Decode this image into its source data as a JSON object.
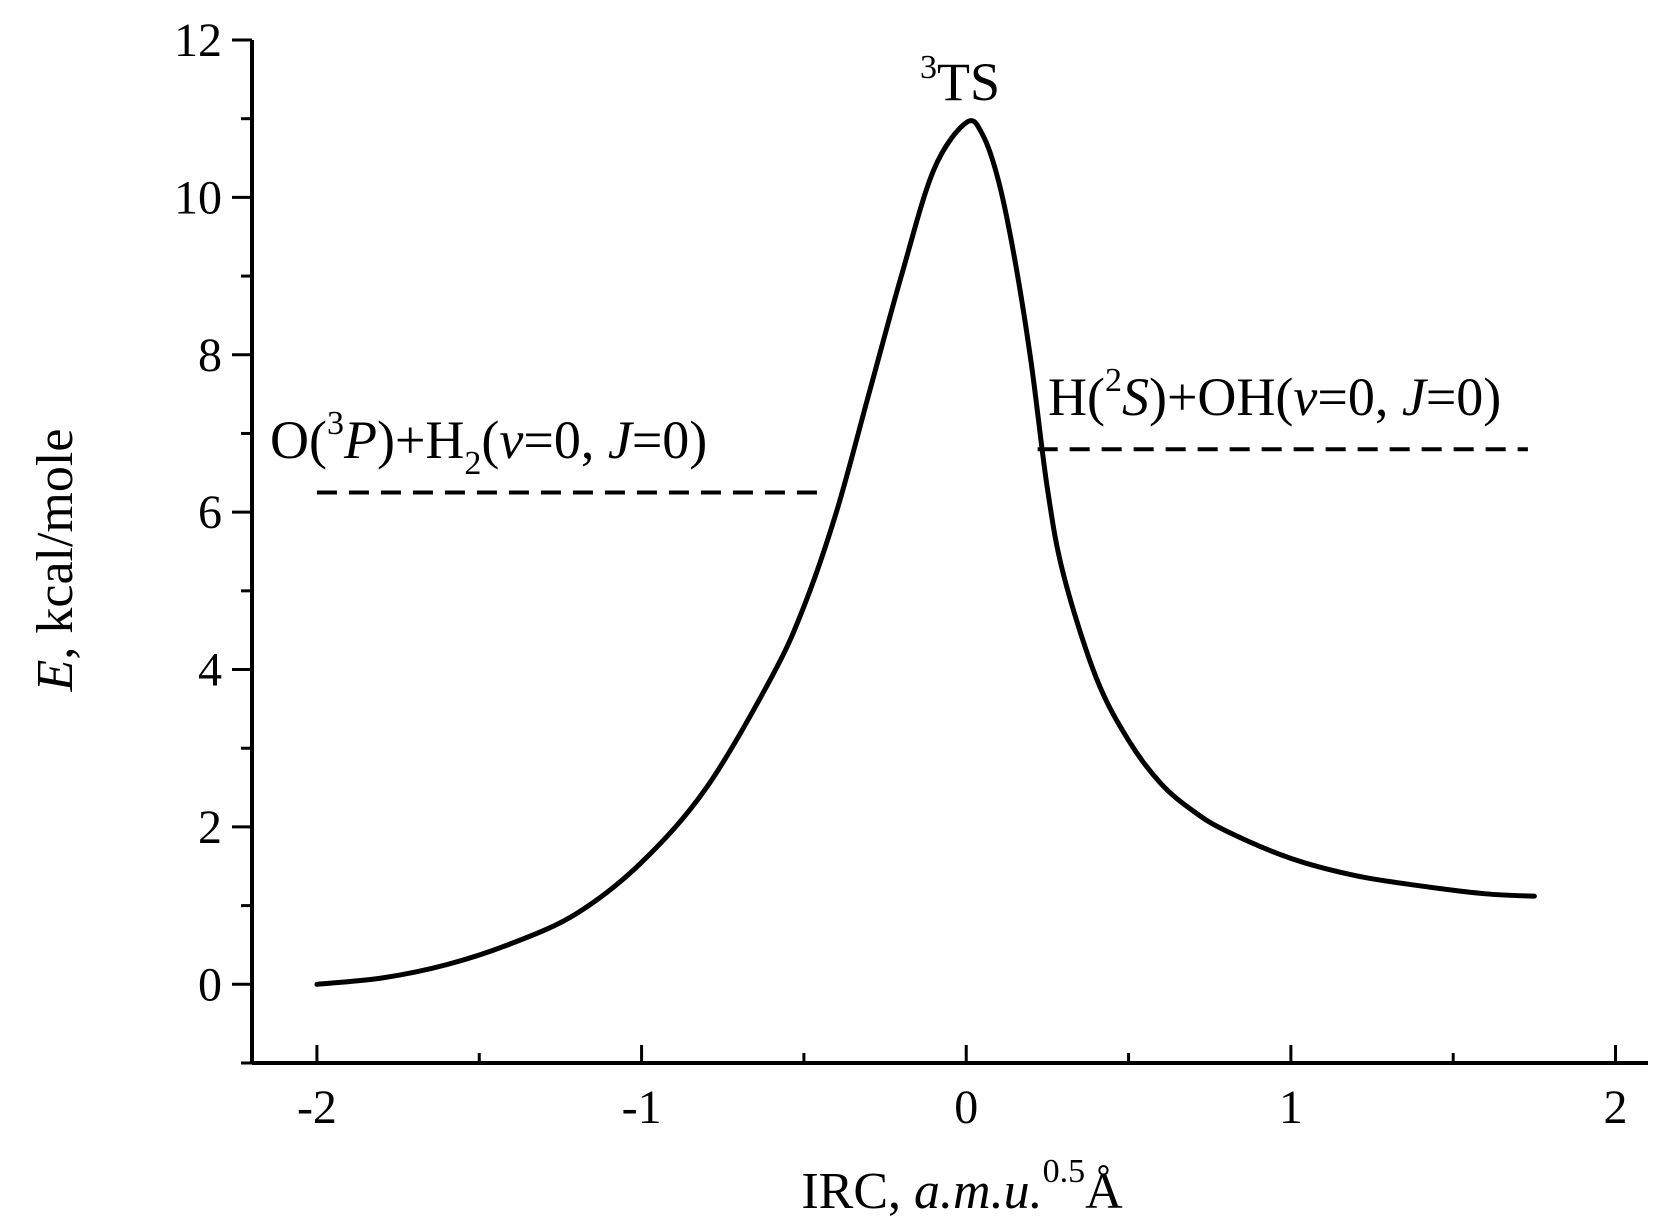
{
  "chart_data": {
    "type": "line",
    "x_axis": {
      "range": [
        -2.2,
        2.1
      ],
      "ticks": [
        -2,
        -1,
        0,
        1,
        2
      ],
      "tick_labels": [
        "-2",
        "-1",
        "0",
        "1",
        "2"
      ],
      "minor_ticks": [
        -1.5,
        -0.5,
        0.5,
        1.5
      ],
      "label_text": "IRC, ",
      "label_italic": "a.m.u.",
      "label_sup": "0.5",
      "label_unit": "Å"
    },
    "y_axis": {
      "range": [
        -1,
        12
      ],
      "ticks": [
        0,
        2,
        4,
        6,
        8,
        10,
        12
      ],
      "tick_labels": [
        "0",
        "2",
        "4",
        "6",
        "8",
        "10",
        "12"
      ],
      "minor_ticks": [
        -1,
        1,
        3,
        5,
        7,
        9,
        11
      ],
      "label_italic": "E",
      "label_text": ", kcal/mole"
    },
    "grid": false,
    "series": [
      {
        "style": "solid",
        "color": "#000000",
        "x": [
          -2.0,
          -1.8,
          -1.6,
          -1.4,
          -1.2,
          -1.0,
          -0.8,
          -0.6,
          -0.5,
          -0.4,
          -0.3,
          -0.2,
          -0.1,
          0.0,
          0.05,
          0.1,
          0.15,
          0.2,
          0.25,
          0.3,
          0.4,
          0.5,
          0.6,
          0.7,
          0.8,
          1.0,
          1.2,
          1.4,
          1.6,
          1.75
        ],
        "y": [
          0.0,
          0.08,
          0.25,
          0.52,
          0.9,
          1.55,
          2.5,
          3.9,
          4.8,
          6.0,
          7.5,
          9.0,
          10.35,
          10.95,
          10.8,
          10.2,
          9.2,
          7.9,
          6.3,
          5.2,
          3.9,
          3.1,
          2.55,
          2.2,
          1.95,
          1.6,
          1.38,
          1.25,
          1.15,
          1.12
        ]
      }
    ],
    "reference_lines": [
      {
        "x_start": -2.0,
        "x_end": -0.45,
        "y": 6.25,
        "style": "dashed"
      },
      {
        "x_start": 0.22,
        "x_end": 1.73,
        "y": 6.8,
        "style": "dashed"
      }
    ],
    "annotations": {
      "ts": {
        "sup": "3",
        "text": "TS"
      },
      "reactants": {
        "p1": "O(",
        "sup1": "3",
        "p2_italic": "P",
        "p3": ")+H",
        "sub": "2",
        "p4": "(",
        "p5_italic": "v",
        "p6": "=0, ",
        "p7_italic": "J",
        "p8": "=0)"
      },
      "products": {
        "p1": "H(",
        "sup1": "2",
        "p2_italic": "S",
        "p3": ")+OH(",
        "p4_italic": "v",
        "p5": "=0, ",
        "p6_italic": "J",
        "p7": "=0)"
      }
    }
  }
}
